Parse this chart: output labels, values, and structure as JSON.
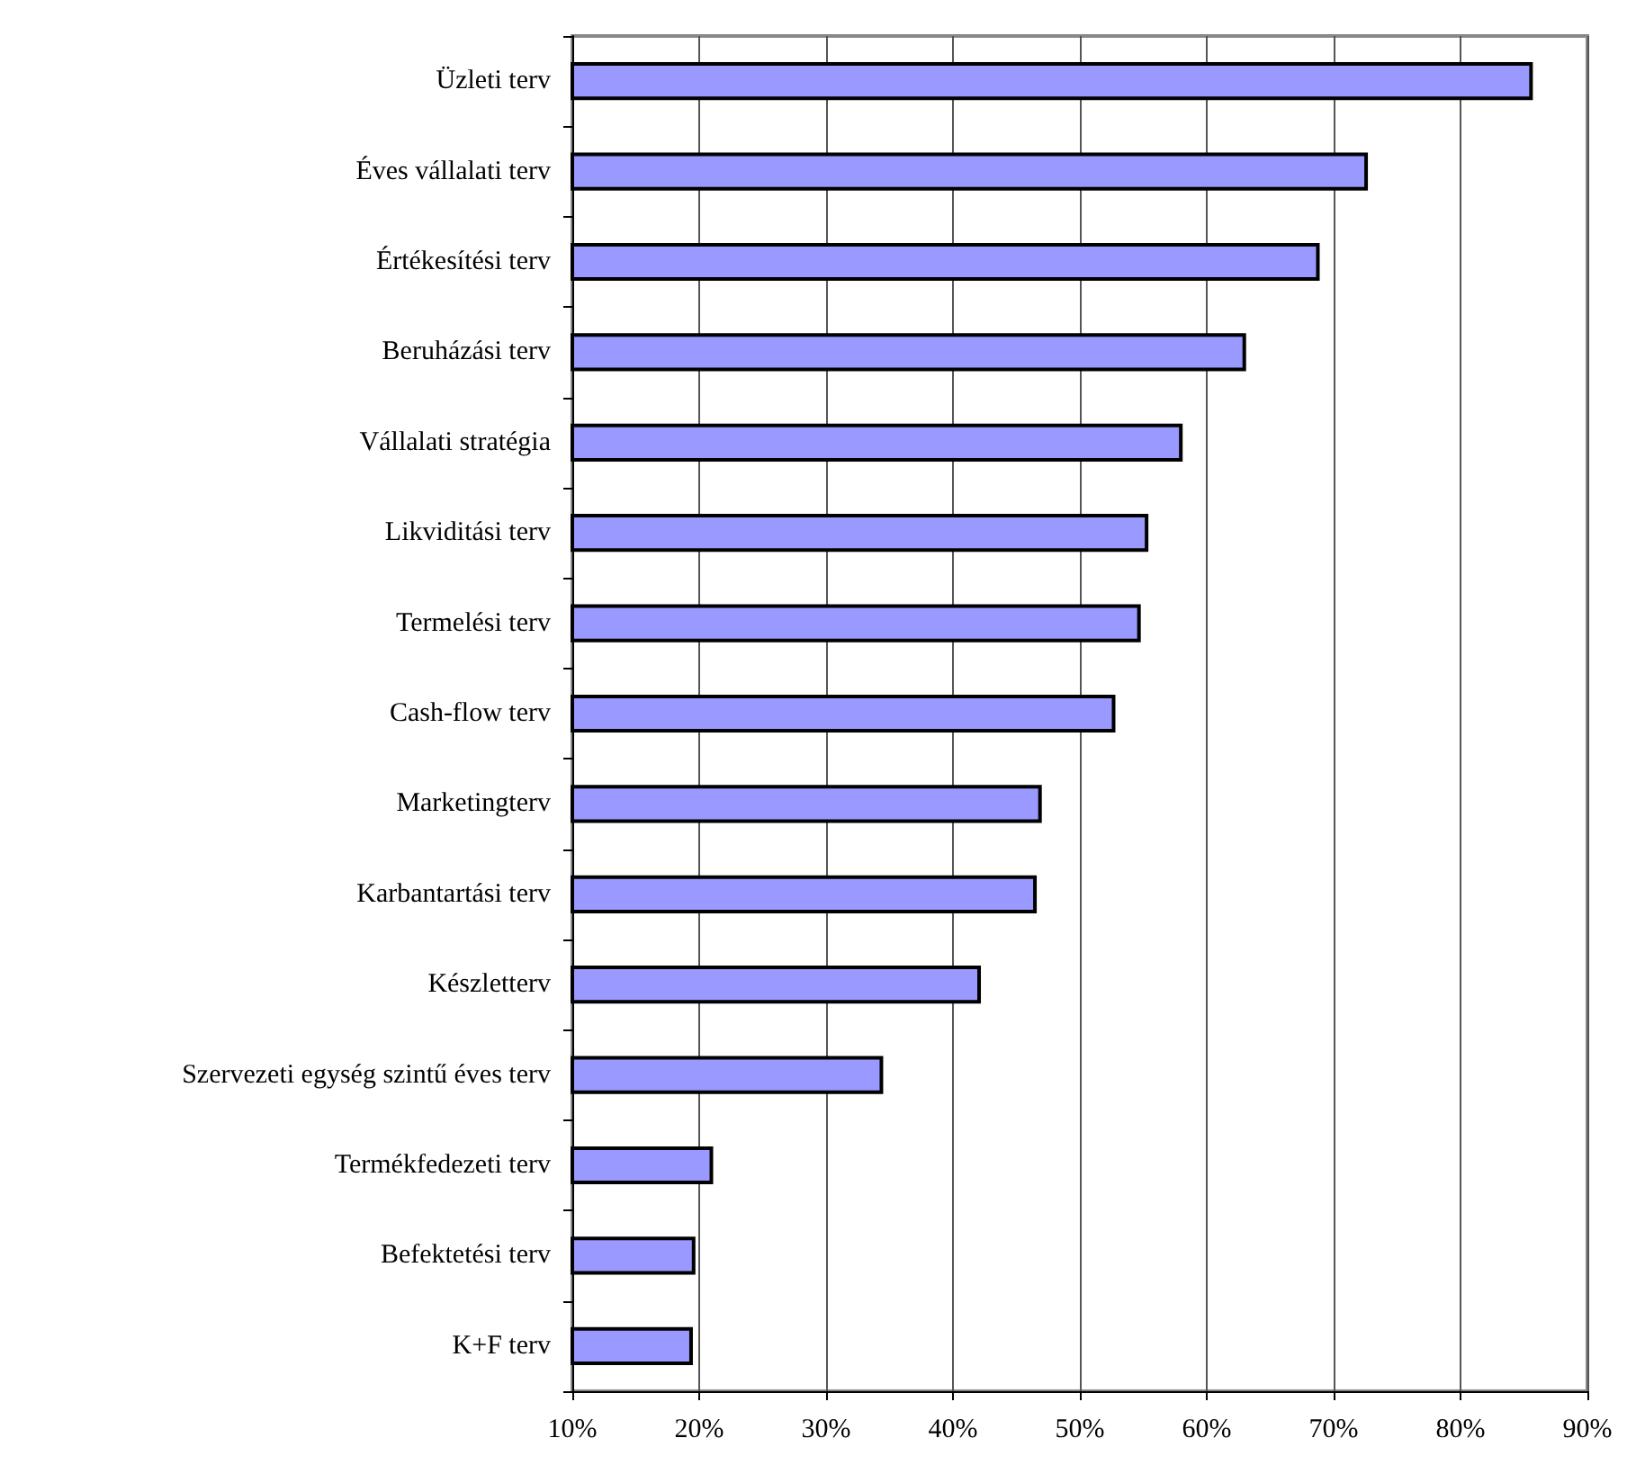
{
  "chart_data": {
    "type": "bar",
    "orientation": "horizontal",
    "categories": [
      "Üzleti terv",
      "Éves vállalati terv",
      "Értékesítési terv",
      "Beruházási terv",
      "Vállalati stratégia",
      "Likviditási terv",
      "Termelési terv",
      "Cash-flow terv",
      "Marketingterv",
      "Karbantartási terv",
      "Készletterv",
      "Szervezeti egység szintű éves terv",
      "Termékfedezeti terv",
      "Befektetési terv",
      "K+F terv"
    ],
    "values": [
      85.7,
      72.7,
      68.9,
      63.1,
      58.1,
      55.4,
      54.8,
      52.8,
      47.0,
      46.6,
      42.2,
      34.5,
      21.1,
      19.7,
      19.5
    ],
    "color": "#9999ff",
    "xlim": [
      10,
      90
    ],
    "xticks": [
      {
        "value": 10,
        "label": "10%"
      },
      {
        "value": 20,
        "label": "20%"
      },
      {
        "value": 30,
        "label": "30%"
      },
      {
        "value": 40,
        "label": "40%"
      },
      {
        "value": 50,
        "label": "50%"
      },
      {
        "value": 60,
        "label": "60%"
      },
      {
        "value": 70,
        "label": "70%"
      },
      {
        "value": 80,
        "label": "80%"
      },
      {
        "value": 90,
        "label": "90%"
      }
    ],
    "grid": "x"
  }
}
